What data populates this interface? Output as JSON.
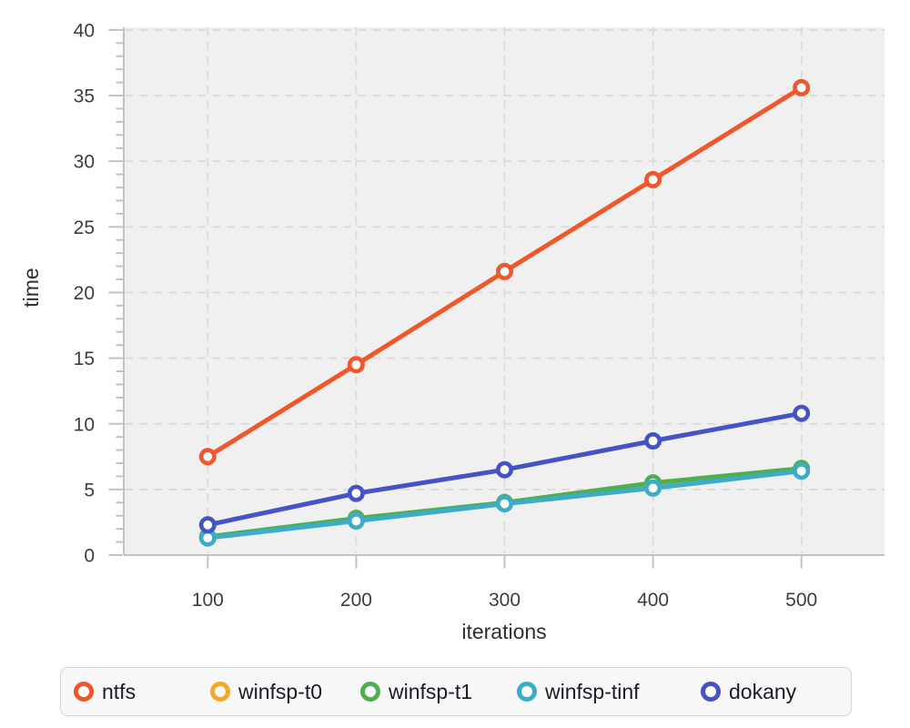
{
  "chart_data": {
    "type": "line",
    "title": "",
    "xlabel": "iterations",
    "ylabel": "time",
    "x": [
      100,
      200,
      300,
      400,
      500
    ],
    "x_ticks": [
      100,
      200,
      300,
      400,
      500
    ],
    "y_ticks_major": [
      0,
      5,
      10,
      15,
      20,
      25,
      30,
      35,
      40
    ],
    "y_minor_step": 1,
    "xlim": [
      44,
      556
    ],
    "ylim": [
      0,
      40.2
    ],
    "grid": true,
    "legend_position": "bottom",
    "series": [
      {
        "name": "ntfs",
        "color": "#F0572B",
        "values": [
          7.5,
          14.5,
          21.6,
          28.6,
          35.6
        ]
      },
      {
        "name": "winfsp-t0",
        "color": "#F3A72B",
        "values": [
          1.4,
          2.7,
          4.0,
          5.2,
          6.5
        ]
      },
      {
        "name": "winfsp-t1",
        "color": "#4FAE50",
        "values": [
          1.4,
          2.8,
          4.0,
          5.5,
          6.6
        ]
      },
      {
        "name": "winfsp-tinf",
        "color": "#3DACC8",
        "values": [
          1.3,
          2.6,
          3.9,
          5.1,
          6.4
        ]
      },
      {
        "name": "dokany",
        "color": "#4453C6",
        "values": [
          2.3,
          4.7,
          6.5,
          8.7,
          10.8
        ]
      }
    ],
    "colors": {
      "plot_bg": "#f0f0f0",
      "grid": "#d9d9d9",
      "axis": "#c2c2c2",
      "tick_label": "#3d3d3d",
      "axis_label": "#2f2f2f",
      "marker_fill": "#ffffff"
    },
    "legend": {
      "bg": "#f8f8f8",
      "border": "#d4d4d4",
      "text_color": "#1c1c28"
    }
  }
}
